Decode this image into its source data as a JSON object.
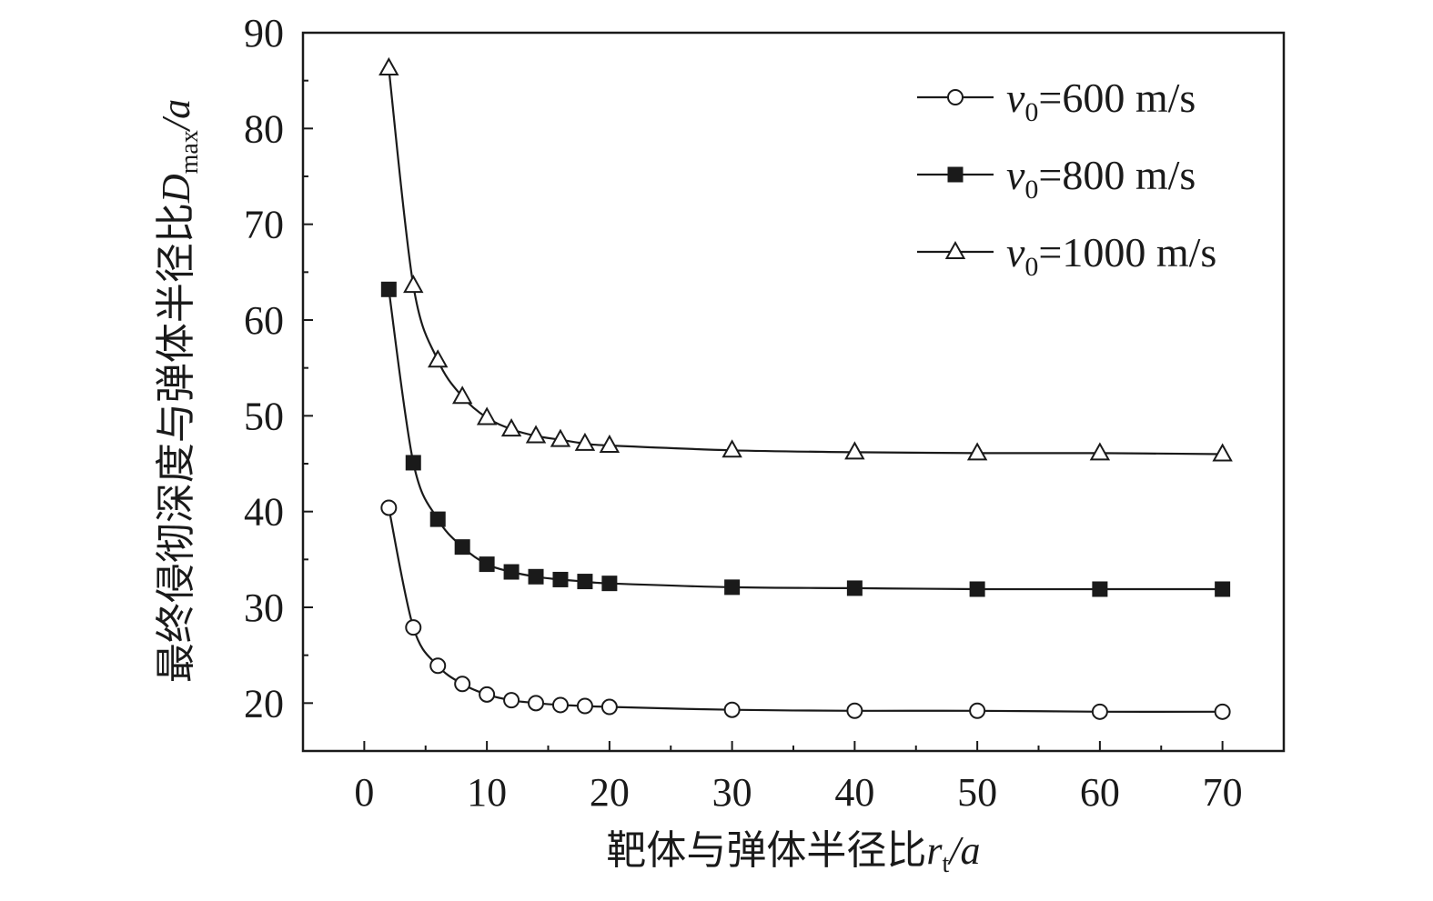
{
  "chart_data": {
    "type": "line",
    "xlabel": "靶体与弹体半径比r_t/a",
    "ylabel": "最终侵彻深度与弹体半径比D_max/a",
    "xlabel_parts": {
      "cn": "靶体与弹体半径比",
      "var": "r",
      "sub": "t",
      "tail": "/a"
    },
    "ylabel_parts": {
      "cn": "最终侵彻深度与弹体半径比",
      "var": "D",
      "sub": "max",
      "tail": "/a"
    },
    "xlim": [
      -5,
      75
    ],
    "ylim": [
      15,
      90
    ],
    "xticks": [
      0,
      10,
      20,
      30,
      40,
      50,
      60,
      70
    ],
    "yticks": [
      20,
      30,
      40,
      50,
      60,
      70,
      80,
      90
    ],
    "xtick_labels": [
      "0",
      "10",
      "20",
      "30",
      "40",
      "50",
      "60",
      "70"
    ],
    "ytick_labels": [
      "20",
      "30",
      "40",
      "50",
      "60",
      "70",
      "80",
      "90"
    ],
    "grid": false,
    "legend_position": "top-right",
    "x": [
      2,
      4,
      6,
      8,
      10,
      12,
      14,
      16,
      18,
      20,
      30,
      40,
      50,
      60,
      70
    ],
    "series": [
      {
        "name": "v0=600 m/s",
        "label": {
          "var": "v",
          "sub": "0",
          "rest": "=600 m/s"
        },
        "marker": "circle-open",
        "values": [
          40.4,
          27.9,
          23.9,
          22.0,
          20.9,
          20.3,
          20.0,
          19.8,
          19.7,
          19.6,
          19.3,
          19.2,
          19.2,
          19.1,
          19.1
        ]
      },
      {
        "name": "v0=800 m/s",
        "label": {
          "var": "v",
          "sub": "0",
          "rest": "=800 m/s"
        },
        "marker": "square-filled",
        "values": [
          63.2,
          45.1,
          39.2,
          36.3,
          34.5,
          33.7,
          33.2,
          32.9,
          32.7,
          32.5,
          32.1,
          32.0,
          31.9,
          31.9,
          31.9
        ]
      },
      {
        "name": "v0=1000 m/s",
        "label": {
          "var": "v",
          "sub": "0",
          "rest": "=1000 m/s"
        },
        "marker": "triangle-open",
        "values": [
          86.3,
          63.6,
          55.8,
          52.0,
          49.8,
          48.6,
          47.9,
          47.5,
          47.1,
          46.9,
          46.4,
          46.2,
          46.1,
          46.1,
          46.0
        ]
      }
    ]
  },
  "style": {
    "ink": "#1a1a1a",
    "background": "#ffffff"
  }
}
